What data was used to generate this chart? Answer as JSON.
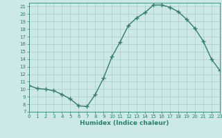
{
  "xlabel": "Humidex (Indice chaleur)",
  "ylabel": "",
  "x_values": [
    0,
    1,
    2,
    3,
    4,
    5,
    6,
    7,
    8,
    9,
    10,
    11,
    12,
    13,
    14,
    15,
    16,
    17,
    18,
    19,
    20,
    21,
    22,
    23
  ],
  "y_values": [
    10.5,
    10.1,
    10.0,
    9.8,
    9.3,
    8.7,
    7.8,
    7.7,
    9.3,
    11.5,
    14.3,
    16.3,
    18.5,
    19.5,
    20.2,
    21.2,
    21.2,
    20.9,
    20.3,
    19.3,
    18.1,
    16.4,
    14.0,
    12.5
  ],
  "line_color": "#2e7d6e",
  "marker": "+",
  "marker_size": 4,
  "bg_color": "#cce8e8",
  "grid_color": "#aacccc",
  "tick_color": "#2e7d6e",
  "spine_color": "#2e7d6e",
  "ylim": [
    7,
    21.5
  ],
  "xlim": [
    0,
    23
  ],
  "yticks": [
    7,
    8,
    9,
    10,
    11,
    12,
    13,
    14,
    15,
    16,
    17,
    18,
    19,
    20,
    21
  ],
  "xticks": [
    0,
    1,
    2,
    3,
    4,
    5,
    6,
    7,
    8,
    9,
    10,
    11,
    12,
    13,
    14,
    15,
    16,
    17,
    18,
    19,
    20,
    21,
    22,
    23
  ],
  "tick_fontsize": 5,
  "xlabel_fontsize": 6.5,
  "linewidth": 1.0
}
